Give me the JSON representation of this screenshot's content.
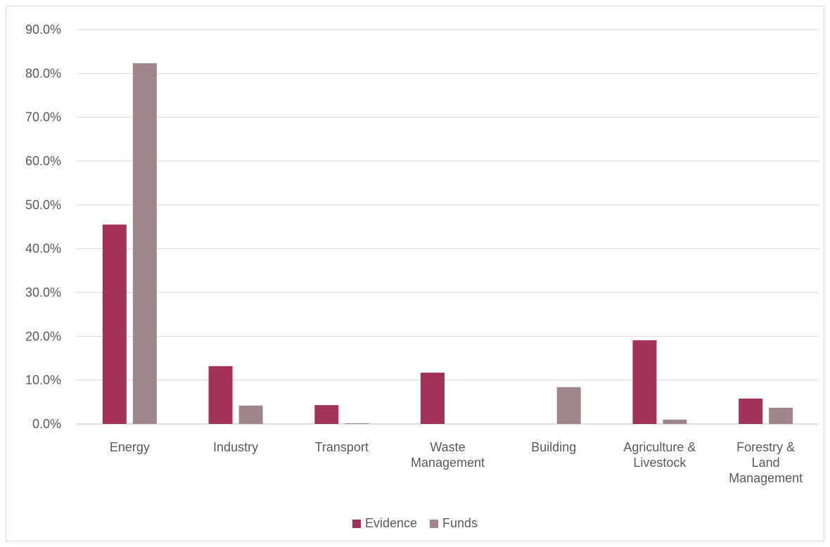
{
  "chart_data": {
    "type": "bar",
    "categories": [
      [
        "Energy"
      ],
      [
        "Industry"
      ],
      [
        "Transport"
      ],
      [
        "Waste",
        "Management"
      ],
      [
        "Building"
      ],
      [
        "Agriculture &",
        "Livestock"
      ],
      [
        "Forestry &",
        "Land",
        "Management"
      ]
    ],
    "series": [
      {
        "name": "Evidence",
        "color": "#a23258",
        "values": [
          45.5,
          13.2,
          4.3,
          11.7,
          0.0,
          19.1,
          5.8
        ]
      },
      {
        "name": "Funds",
        "color": "#a0868a",
        "values": [
          82.3,
          4.2,
          0.1,
          0.0,
          8.4,
          1.0,
          3.7
        ]
      }
    ],
    "yticks": [
      "0.0%",
      "10.0%",
      "20.0%",
      "30.0%",
      "40.0%",
      "50.0%",
      "60.0%",
      "70.0%",
      "80.0%",
      "90.0%"
    ],
    "ylim": [
      0,
      90
    ],
    "grid": true,
    "legend_position": "bottom"
  }
}
